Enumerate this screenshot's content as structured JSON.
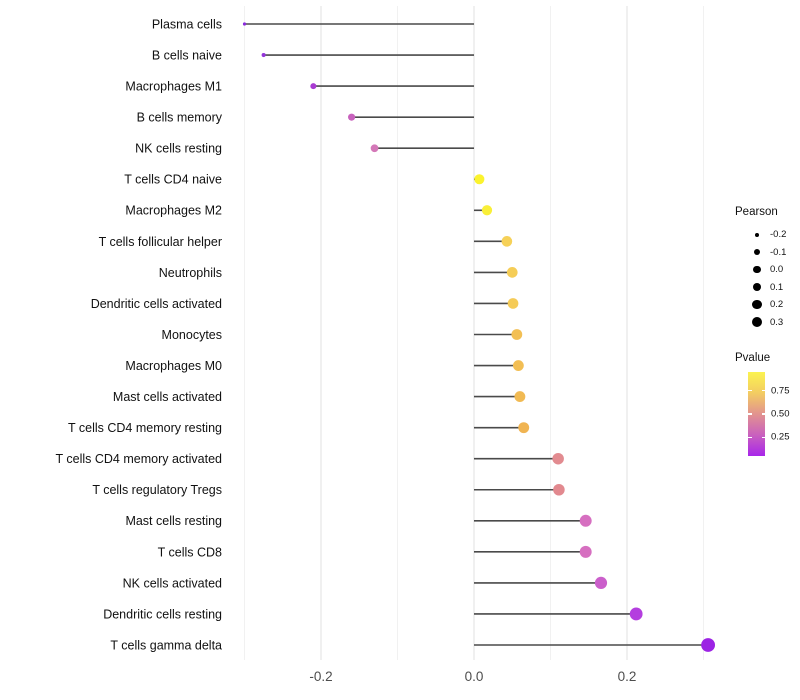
{
  "chart_data": {
    "type": "lollipop",
    "orientation": "horizontal",
    "title": "",
    "xlabel": "",
    "ylabel": "",
    "x_axis": {
      "ticks": [
        -0.2,
        0.0,
        0.2
      ],
      "tick_labels": [
        "-0.2",
        "0.0",
        "0.2"
      ],
      "minor_gridlines": [
        -0.3,
        -0.1,
        0.1,
        0.3
      ],
      "range": [
        -0.33,
        0.33
      ],
      "baseline": 0.0
    },
    "points": [
      {
        "category": "Plasma cells",
        "pearson": -0.3,
        "color": "#8A2BDB"
      },
      {
        "category": "B cells naive",
        "pearson": -0.275,
        "color": "#9334D9"
      },
      {
        "category": "Macrophages M1",
        "pearson": -0.21,
        "color": "#A93BD2"
      },
      {
        "category": "B cells memory",
        "pearson": -0.16,
        "color": "#C862BD"
      },
      {
        "category": "NK cells resting",
        "pearson": -0.13,
        "color": "#D478B8"
      },
      {
        "category": "T cells CD4 naive",
        "pearson": 0.007,
        "color": "#FBF32E"
      },
      {
        "category": "Macrophages M2",
        "pearson": 0.017,
        "color": "#F9EF38"
      },
      {
        "category": "T cells follicular helper",
        "pearson": 0.043,
        "color": "#F6D158"
      },
      {
        "category": "Neutrophils",
        "pearson": 0.05,
        "color": "#F5CD57"
      },
      {
        "category": "Dendritic cells activated",
        "pearson": 0.051,
        "color": "#F5CB57"
      },
      {
        "category": "Monocytes",
        "pearson": 0.056,
        "color": "#F2BF54"
      },
      {
        "category": "Macrophages M0",
        "pearson": 0.058,
        "color": "#F2BE54"
      },
      {
        "category": "Mast cells activated",
        "pearson": 0.06,
        "color": "#F1BA53"
      },
      {
        "category": "T cells CD4 memory resting",
        "pearson": 0.065,
        "color": "#F0B452"
      },
      {
        "category": "T cells CD4 memory activated",
        "pearson": 0.11,
        "color": "#E28B90"
      },
      {
        "category": "T cells regulatory  Tregs",
        "pearson": 0.111,
        "color": "#E2898F"
      },
      {
        "category": "Mast cells resting",
        "pearson": 0.146,
        "color": "#D66FC0"
      },
      {
        "category": "T cells CD8",
        "pearson": 0.146,
        "color": "#D66FC0"
      },
      {
        "category": "NK cells activated",
        "pearson": 0.166,
        "color": "#CB5FCB"
      },
      {
        "category": "Dendritic cells resting",
        "pearson": 0.212,
        "color": "#B43EDF"
      },
      {
        "category": "T cells gamma delta",
        "pearson": 0.306,
        "color": "#9C23E4"
      }
    ],
    "size_legend": {
      "title": "Pearson",
      "values": [
        -0.2,
        -0.1,
        0.0,
        0.1,
        0.2,
        0.3
      ],
      "labels": [
        "-0.2",
        "-0.1",
        "0.0",
        "0.1",
        "0.2",
        "0.3"
      ],
      "dot_color": "#000000"
    },
    "color_legend": {
      "title": "Pvalue",
      "ticks": [
        0.75,
        0.5,
        0.25
      ],
      "tick_labels": [
        "0.75",
        "0.50",
        "0.25"
      ],
      "bar_value_range_top_to_bottom": [
        0.95,
        0.05
      ],
      "gradient_top_to_bottom": [
        "#FBF350",
        "#F3CC62",
        "#E2938F",
        "#C960BE",
        "#A826EA"
      ]
    },
    "colors": {
      "background": "#ffffff",
      "segment": "#4a4a4a",
      "grid_major": "#e4e4e4",
      "grid_minor": "#f0f0f0",
      "axis_text": "#4d4d4d",
      "category_text": "#111111"
    }
  }
}
